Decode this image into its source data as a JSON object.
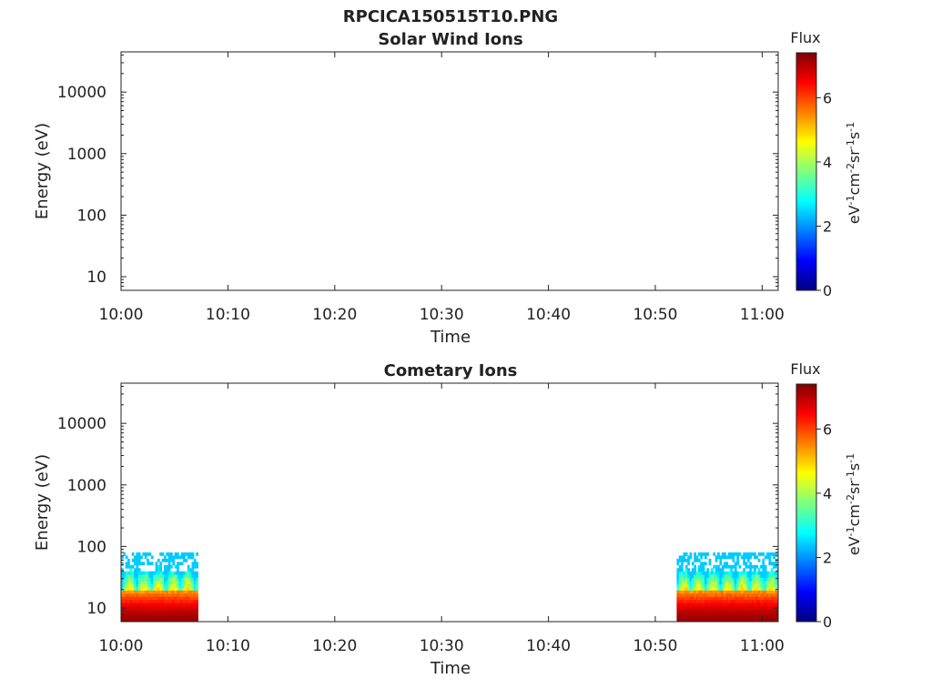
{
  "figure_title": "RPCICA150515T10.PNG",
  "colors": {
    "colormap": [
      "#00007f",
      "#0000ff",
      "#007fff",
      "#00ffff",
      "#7fff7f",
      "#ffff00",
      "#ff7f00",
      "#ff0000",
      "#7f0000"
    ],
    "axis": "#222222"
  },
  "chart_data": [
    {
      "type": "heatmap",
      "title": "Solar Wind Ions",
      "xlabel": "Time",
      "ylabel": "Energy (eV)",
      "x_ticks": [
        "10:00",
        "10:10",
        "10:20",
        "10:30",
        "10:40",
        "10:50",
        "11:00"
      ],
      "xlim_minutes": [
        0,
        61.5
      ],
      "y_scale": "log",
      "y_ticks": [
        "10",
        "100",
        "1000",
        "10000"
      ],
      "ylim": [
        6,
        45000
      ],
      "colorbar": {
        "title": "Flux",
        "label": "eV-1cm-2sr-1s-1",
        "ticks": [
          "0",
          "2",
          "4",
          "6"
        ],
        "range": [
          0,
          7.4
        ]
      },
      "populated_intervals": []
    },
    {
      "type": "heatmap",
      "title": "Cometary Ions",
      "xlabel": "Time",
      "ylabel": "Energy (eV)",
      "x_ticks": [
        "10:00",
        "10:10",
        "10:20",
        "10:30",
        "10:40",
        "10:50",
        "11:00"
      ],
      "xlim_minutes": [
        0,
        61.5
      ],
      "y_scale": "log",
      "y_ticks": [
        "10",
        "100",
        "1000",
        "10000"
      ],
      "ylim": [
        6,
        45000
      ],
      "colorbar": {
        "title": "Flux",
        "label": "eV-1cm-2sr-1s-1",
        "ticks": [
          "0",
          "2",
          "4",
          "6"
        ],
        "range": [
          0,
          7.4
        ]
      },
      "populated_intervals": [
        {
          "start_min": 0,
          "end_min": 7.2,
          "max_energy_ev": 80,
          "peak_flux": 7.2
        },
        {
          "start_min": 52,
          "end_min": 61.5,
          "max_energy_ev": 80,
          "peak_flux": 7.2
        }
      ]
    }
  ]
}
